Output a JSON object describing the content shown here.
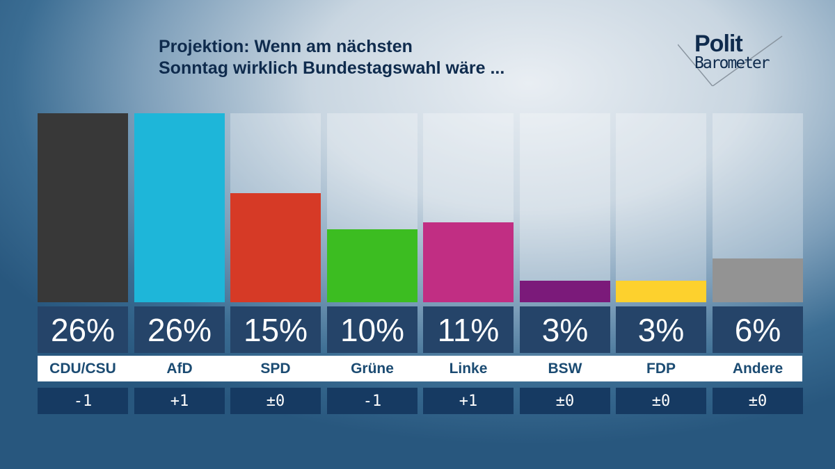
{
  "chart_data": {
    "type": "bar",
    "title": "Projektion: Wenn am nächsten Sonntag wirklich Bundestagswahl wäre ...",
    "title_lines": [
      "Projektion: Wenn am nächsten",
      "Sonntag wirklich Bundestagswahl wäre ..."
    ],
    "categories": [
      "CDU/CSU",
      "AfD",
      "SPD",
      "Grüne",
      "Linke",
      "BSW",
      "FDP",
      "Andere"
    ],
    "values": [
      26,
      26,
      15,
      10,
      11,
      3,
      3,
      6
    ],
    "value_labels": [
      "26%",
      "26%",
      "15%",
      "10%",
      "11%",
      "3%",
      "3%",
      "6%"
    ],
    "changes": [
      "-1",
      "+1",
      "±0",
      "-1",
      "+1",
      "±0",
      "±0",
      "±0"
    ],
    "colors": [
      "#383838",
      "#1eb6d9",
      "#d63a26",
      "#3cbd21",
      "#c12e83",
      "#7b1a7a",
      "#fdd12d",
      "#939393"
    ],
    "ylim": [
      0,
      26
    ],
    "grid": false,
    "legend": "none"
  },
  "logo": {
    "line1": "Polit",
    "line2": "Barometer"
  }
}
